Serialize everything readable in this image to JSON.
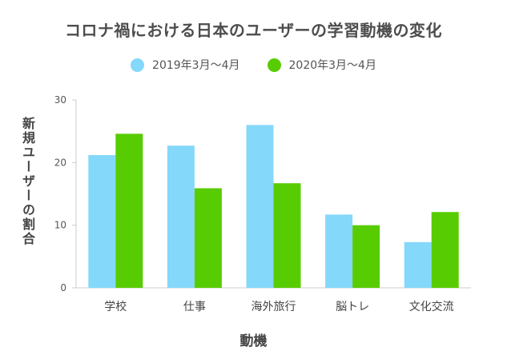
{
  "chart_data": {
    "type": "bar",
    "title": "コロナ禍における日本のユーザーの学習動機の変化",
    "xlabel": "動機",
    "ylabel": "新規ユーザーの割合",
    "categories": [
      "学校",
      "仕事",
      "海外旅行",
      "脳トレ",
      "文化交流"
    ],
    "series": [
      {
        "name": "2019年3月〜4月",
        "values": [
          21.2,
          22.7,
          26.0,
          11.7,
          7.3
        ],
        "color": "#84d8fa"
      },
      {
        "name": "2020年3月〜4月",
        "values": [
          24.6,
          15.9,
          16.7,
          10.0,
          12.1
        ],
        "color": "#58cc02"
      }
    ],
    "ylim": [
      0,
      30
    ],
    "yticks": [
      0,
      10,
      20,
      30
    ],
    "grid": false,
    "legend_position": "top-center"
  }
}
